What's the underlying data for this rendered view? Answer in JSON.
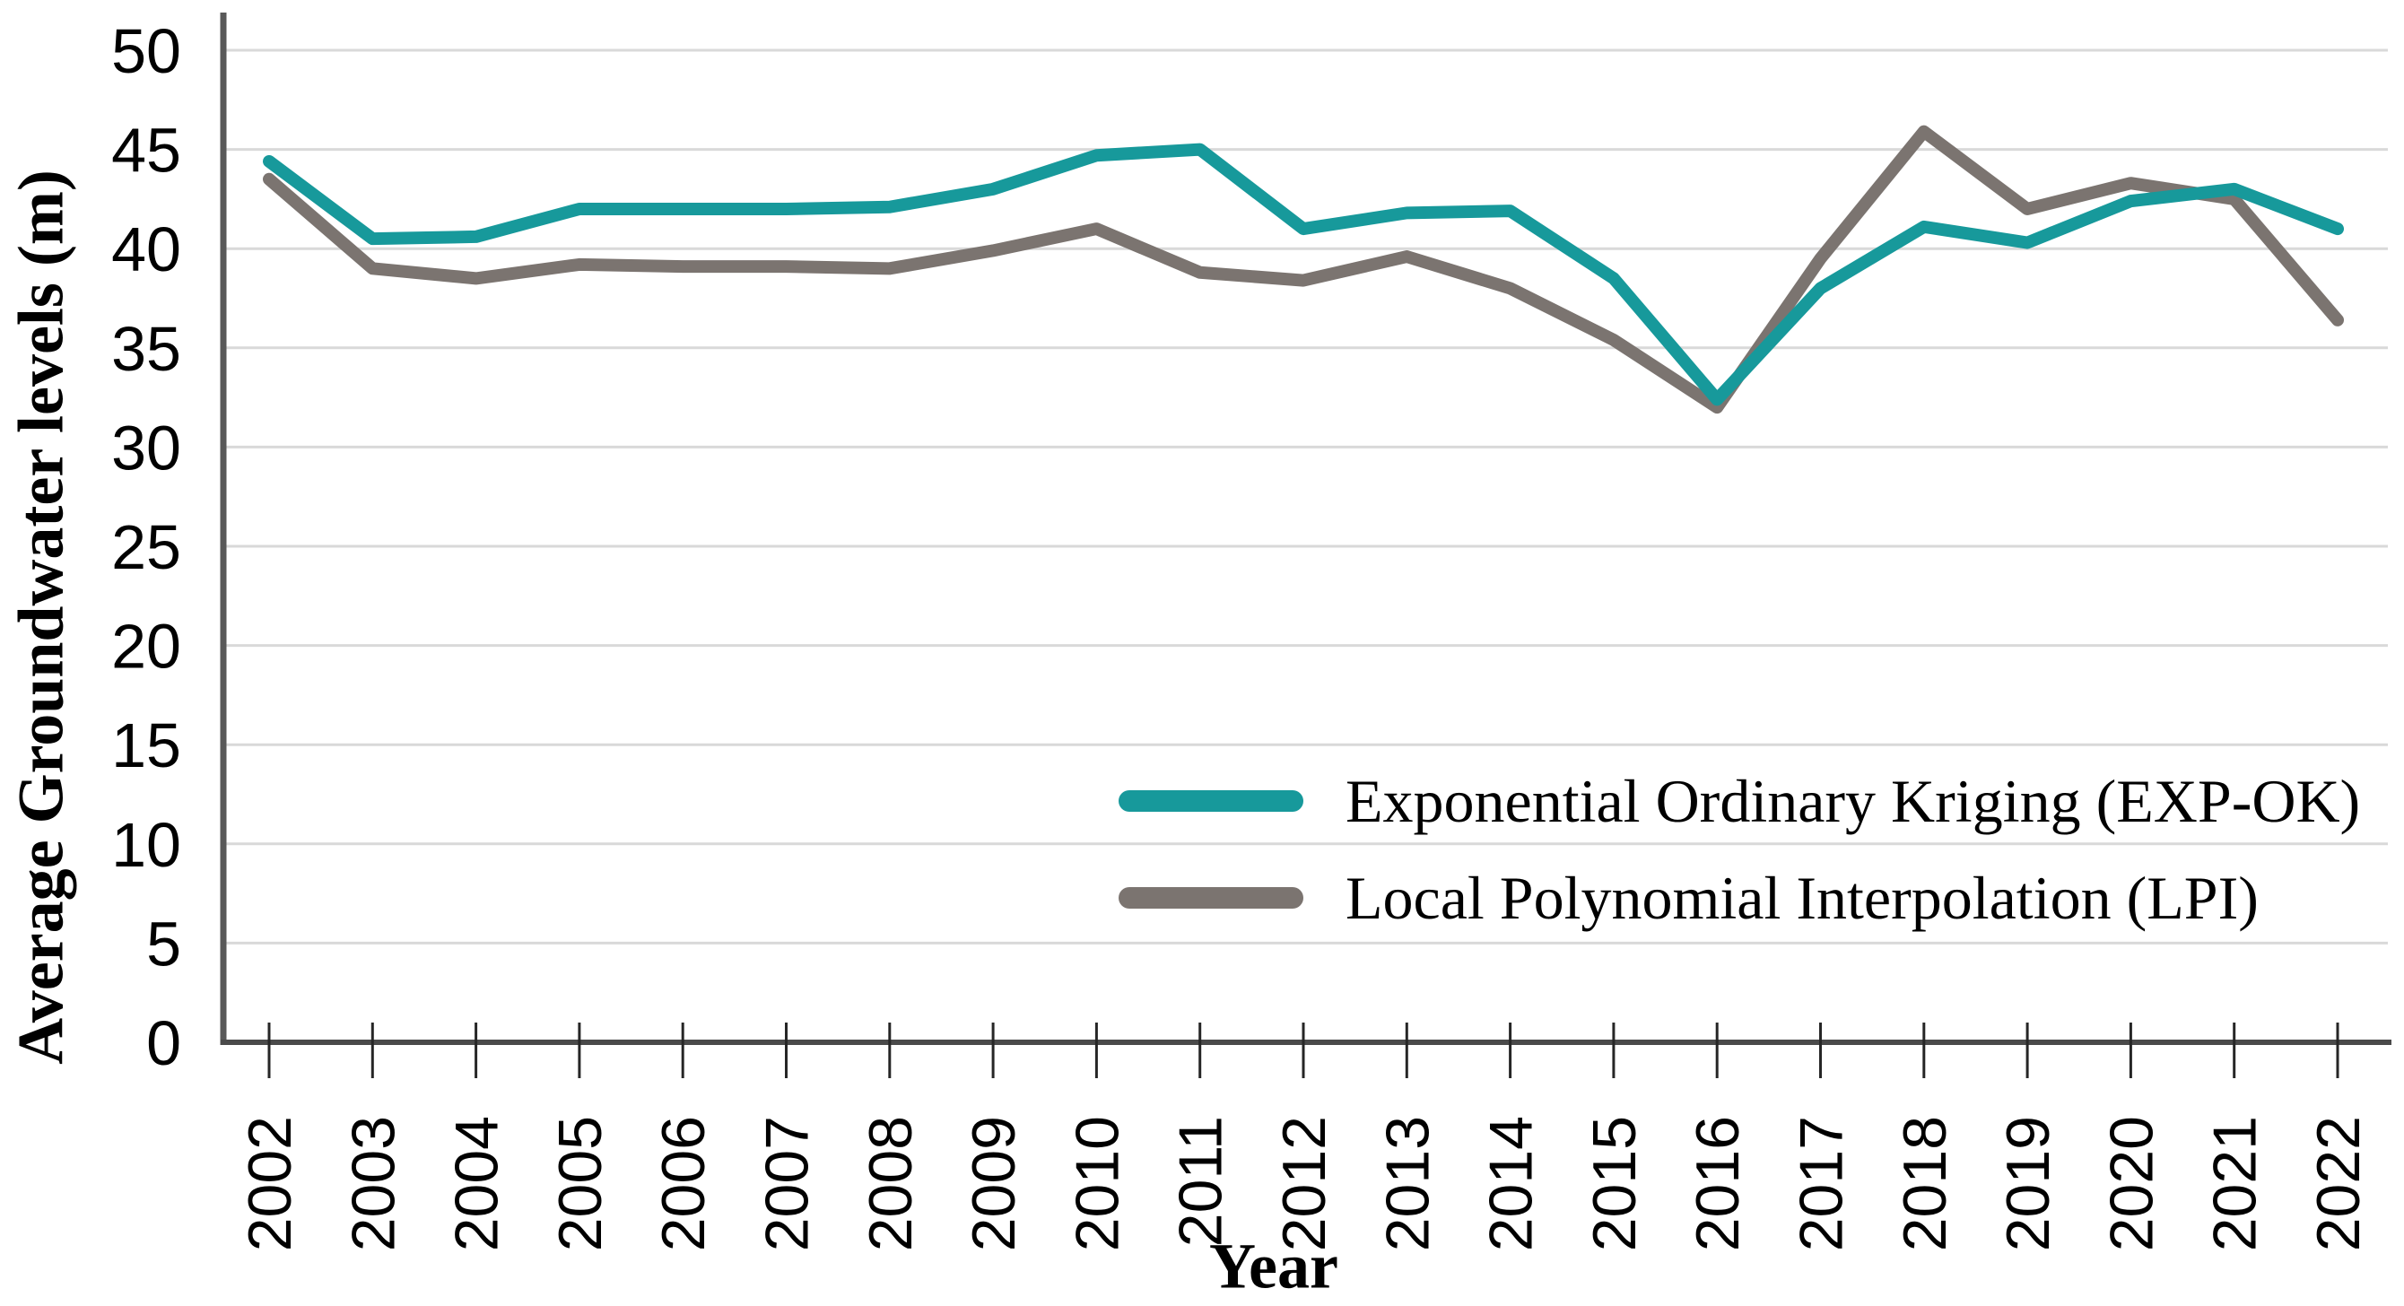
{
  "chart_data": {
    "type": "line",
    "title": "",
    "xlabel": "Year",
    "ylabel": "Average Groundwater levels (m)",
    "ylim": [
      0,
      50
    ],
    "ytick_step": 5,
    "yticks": [
      "0",
      "5",
      "10",
      "15",
      "20",
      "25",
      "30",
      "35",
      "40",
      "45",
      "50"
    ],
    "categories": [
      "2002",
      "2003",
      "2004",
      "2005",
      "2006",
      "2007",
      "2008",
      "2009",
      "2010",
      "2011",
      "2012",
      "2013",
      "2014",
      "2015",
      "2016",
      "2017",
      "2018",
      "2019",
      "2020",
      "2021",
      "2022"
    ],
    "series": [
      {
        "name": "Exponential Ordinary Kriging (EXP-OK)",
        "color": "#17999b",
        "values": [
          44.4,
          40.5,
          40.6,
          42.0,
          42.0,
          42.0,
          42.1,
          43.0,
          44.7,
          45.0,
          41.0,
          41.8,
          41.9,
          38.5,
          32.4,
          38.0,
          41.1,
          40.3,
          42.4,
          43.0,
          41.0
        ]
      },
      {
        "name": "Local Polynomial Interpolation (LPI)",
        "color": "#7b7470",
        "values": [
          43.5,
          39.0,
          38.5,
          39.2,
          39.1,
          39.1,
          39.0,
          39.9,
          41.0,
          38.8,
          38.4,
          39.6,
          38.0,
          35.4,
          32.0,
          39.5,
          45.9,
          42.0,
          43.3,
          42.5,
          36.4
        ]
      }
    ],
    "grid": "horizontal",
    "grid_color": "#d9d9d9",
    "axis_color": "#595959",
    "tick_color": "#262626",
    "text_color": "#000000",
    "legend_position": "inside-right-middle",
    "x_tick_label_rotation_deg": -90
  }
}
